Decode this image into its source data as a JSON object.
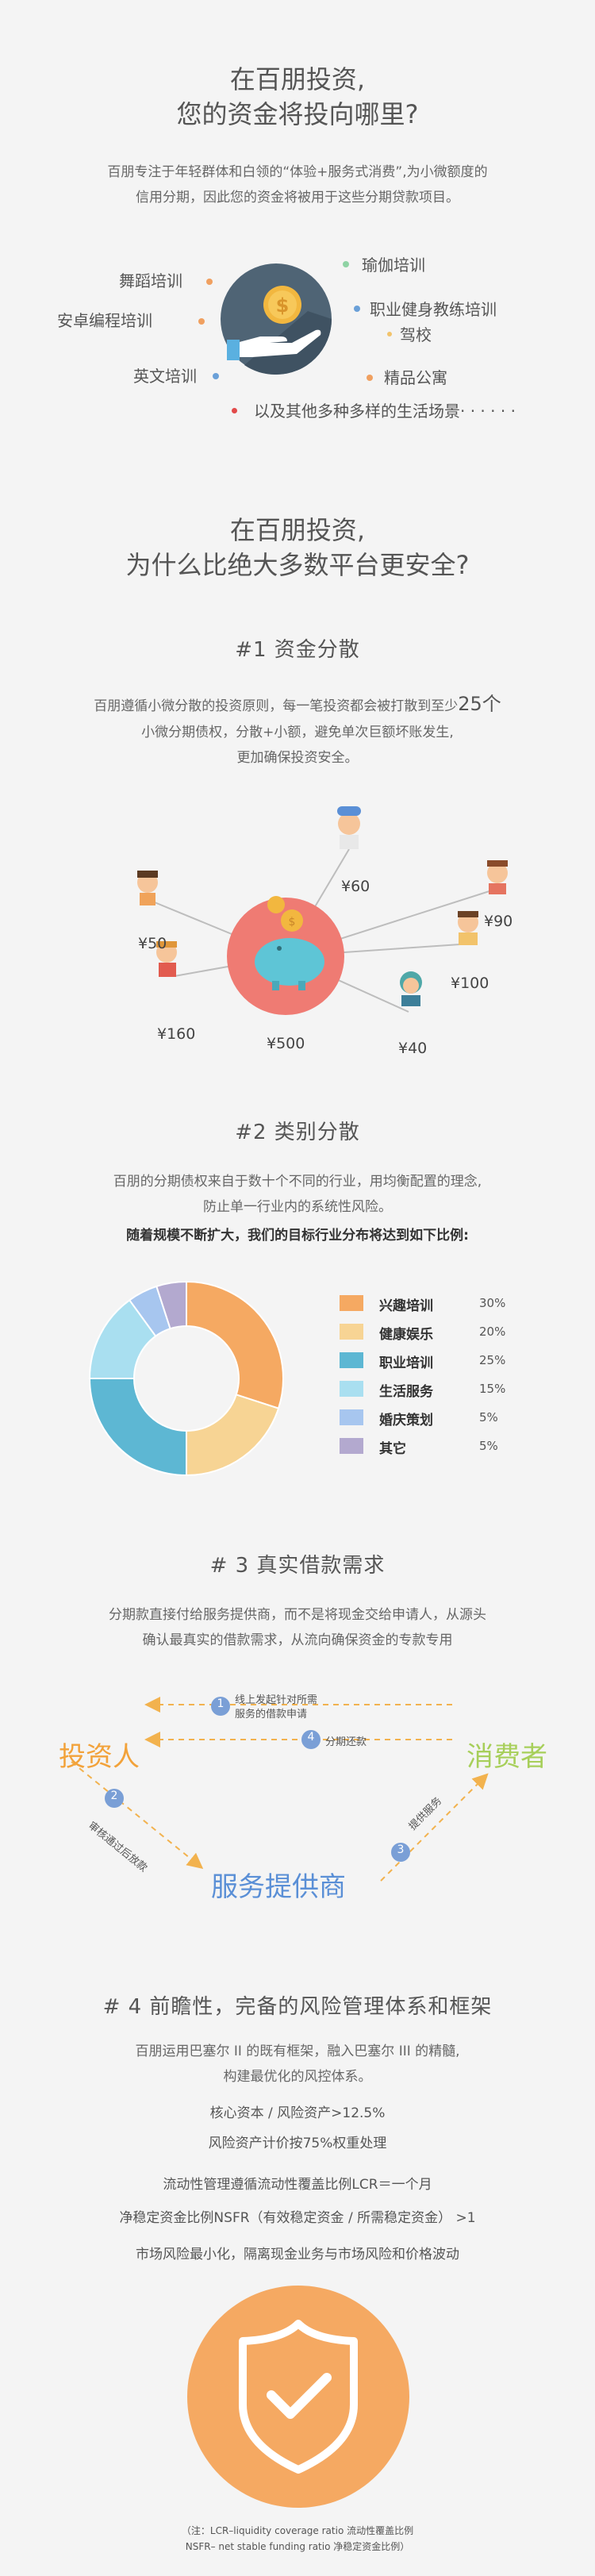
{
  "intro": {
    "title_line1": "在百朋投资,",
    "title_line2": "您的资金将投向哪里?",
    "desc_line1": "百朋专注于年轻群体和白领的“体验+服务式消费”,为小微额度的",
    "desc_line2": "信用分期，因此您的资金将被用于这些分期贷款项目。",
    "categories": [
      "舞蹈培训",
      "安卓编程培训",
      "英文培训",
      "瑜伽培训",
      "职业健身教练培训",
      "驾校",
      "精品公寓",
      "以及其他多种多样的生活场景· · · · · ·"
    ],
    "colors": {
      "blue": "#6aa0d8",
      "orange": "#f0a060",
      "green": "#8fd3a4",
      "yellow": "#f2c36b",
      "red": "#e24a4a"
    }
  },
  "safety": {
    "title_line1": "在百朋投资,",
    "title_line2": "为什么比绝大多数平台更安全?"
  },
  "s1": {
    "title": "#1   资金分散",
    "desc_line1_a": "百朋遵循小微分散的投资原则，每一笔投资都会被打散到至少",
    "desc_line1_b": "25个",
    "desc_line2": "小微分期债权，分散+小额，避免单次巨额坏账发生,",
    "desc_line3": "更加确保投资安全。",
    "amounts": [
      "¥60",
      "¥90",
      "¥50",
      "¥100",
      "¥160",
      "¥500",
      "¥40"
    ]
  },
  "s2": {
    "title": "#2    类别分散",
    "desc_line1": "百朋的分期债权来自于数十个不同的行业，用均衡配置的理念,",
    "desc_line2": "防止单一行业内的系统性风险。",
    "highlight": "随着规模不断扩大，我们的目标行业分布将达到如下比例:",
    "chart_data": {
      "type": "pie",
      "categories": [
        "兴趣培训",
        "健康娱乐",
        "职业培训",
        "生活服务",
        "婚庆策划",
        "其它"
      ],
      "values": [
        30,
        20,
        25,
        15,
        5,
        5
      ],
      "labels": [
        "30%",
        "20%",
        "25%",
        "15%",
        "5%",
        "5%"
      ],
      "colors": [
        "#f5a962",
        "#f7d494",
        "#5db7d3",
        "#a9dff0",
        "#a7c6ef",
        "#b3a9cf"
      ]
    }
  },
  "s3": {
    "title": "# 3    真实借款需求",
    "desc_line1": "分期款直接付给服务提供商，而不是将现金交给申请人，从源头",
    "desc_line2": "确认最真实的借款需求，从流向确保资金的专款专用",
    "investor": "投资人",
    "consumer": "消费者",
    "provider": "服务提供商",
    "step1_line1": "线上发起针对所需",
    "step1_line2": "服务的借款申请",
    "step2": "审核通过后放款",
    "step3": "提供服务",
    "step4": "分期还款",
    "nums": [
      "1",
      "2",
      "3",
      "4"
    ]
  },
  "s4": {
    "title": "# 4  前瞻性，完备的风险管理体系和框架",
    "desc_line1": "百朋运用巴塞尔 II 的既有框架，融入巴塞尔 III 的精髓,",
    "desc_line2": "构建最优化的风控体系。",
    "rules": [
      "核心资本 / 风险资产>12.5%",
      "风险资产计价按75%权重处理",
      "流动性管理遵循流动性覆盖比例LCR＝一个月",
      "净稳定资金比例NSFR（有效稳定资金 / 所需稳定资金） >1",
      "市场风险最小化，隔离现金业务与市场风险和价格波动"
    ],
    "note_line1": "（注：LCR–liquidity coverage ratio   流动性覆盖比例",
    "note_line2": "NSFR– net stable funding ratio   净稳定资金比例）"
  }
}
